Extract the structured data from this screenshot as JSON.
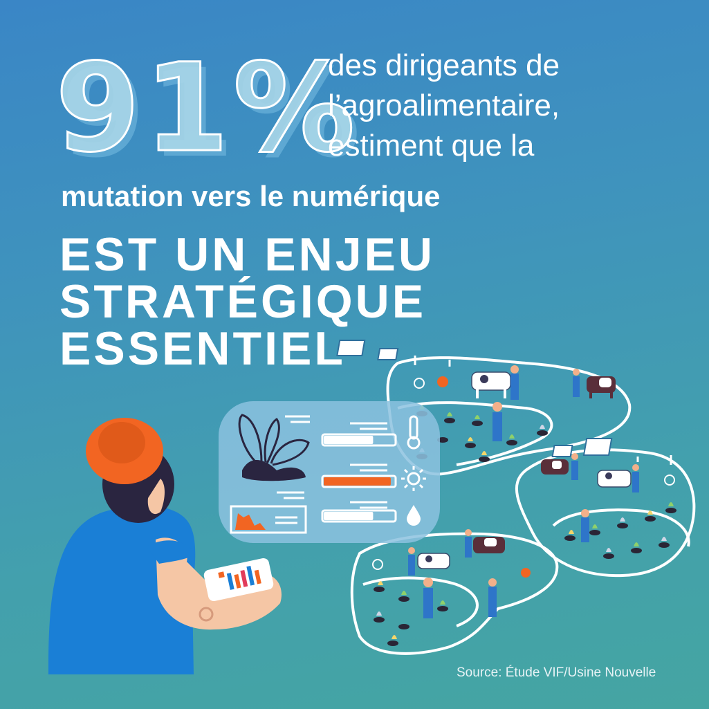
{
  "stat": {
    "value": "91%"
  },
  "intro": {
    "lines": [
      "des dirigeants de",
      "l’agroalimentaire,",
      "estiment que la"
    ]
  },
  "emphasis": "mutation vers le numérique",
  "headline": {
    "lines": [
      "EST UN ENJEU",
      "STRATÉGIQUE",
      "ESSENTIEL"
    ]
  },
  "source": "Source: Étude VIF/Usine Nouvelle",
  "dashboard": {
    "temperature_level": 0.7,
    "sun_level": 0.95,
    "water_level": 0.7
  },
  "colors": {
    "background_top": "#3a86c6",
    "background_bottom": "#45a5a2",
    "accent_orange": "#f26522",
    "shirt_blue": "#1a7fd6",
    "panel": "#8cc2df"
  },
  "icons": [
    "thermometer-icon",
    "sun-icon",
    "water-drop-icon",
    "plant-icon",
    "solar-panel-icon",
    "cow-icon",
    "hen-icon"
  ]
}
